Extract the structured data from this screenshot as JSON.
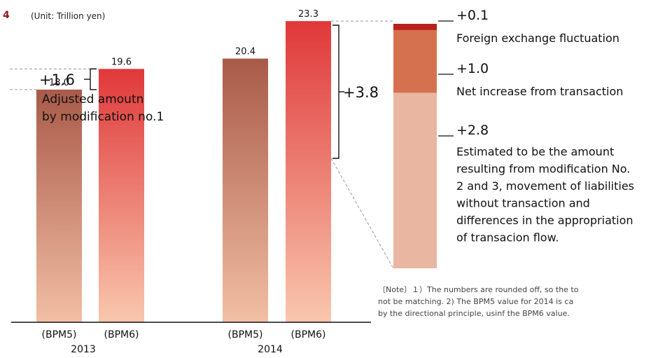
{
  "header": {
    "figure_number": "4",
    "unit": "(Unit: Trillion yen)"
  },
  "adjusted_label_lines": [
    "Adjusted amoutn",
    "by modification no.1"
  ],
  "colors": {
    "bpm5_top": "#a95a49",
    "bpm5_bottom": "#f2bfa4",
    "bpm6_top": "#e0383a",
    "bpm6_bottom": "#f9c7ae",
    "fx_segment": "#b8221a",
    "transaction_segment": "#d6714f",
    "estimated_segment": "#e8b6a1",
    "axis": "#111111",
    "dashed": "#9a9a9a"
  },
  "chart_data": {
    "type": "bar",
    "title": "",
    "unit": "(Unit: Trillion yen)",
    "categories": [
      "(BPM5)",
      "(BPM6)",
      "(BPM5)",
      "(BPM6)"
    ],
    "groups": [
      "2013",
      "2014"
    ],
    "values": [
      18.0,
      19.6,
      20.4,
      23.3
    ],
    "value_labels": [
      "18.0",
      "19.6",
      "20.4",
      "23.3"
    ],
    "ylim": [
      0,
      25
    ],
    "grid": false,
    "differences": [
      {
        "group": "2013",
        "label": "+1.6"
      },
      {
        "group": "2014",
        "label": "+3.8"
      }
    ],
    "breakdown": {
      "type": "stacked-bar",
      "segments": [
        {
          "label": "+0.1",
          "value": 0.1,
          "description_lines": [
            "Foreign exchange fluctuation"
          ]
        },
        {
          "label": "+1.0",
          "value": 1.0,
          "description_lines": [
            "Net increase from transaction"
          ]
        },
        {
          "label": "+2.8",
          "value": 2.8,
          "description_lines": [
            "Estimated to be the amount",
            "resulting from modification No.",
            "2 and 3, movement of liabilities",
            "without transaction and",
            "differences in the appropriation",
            "of transacion flow."
          ]
        }
      ]
    }
  },
  "note_lines": [
    "〔Note〕１）The numbers are rounded off, so the to",
    "not be matching. 2) The BPM5 value for 2014 is ca",
    "by the directional principle, usinf the BPM6 value."
  ]
}
